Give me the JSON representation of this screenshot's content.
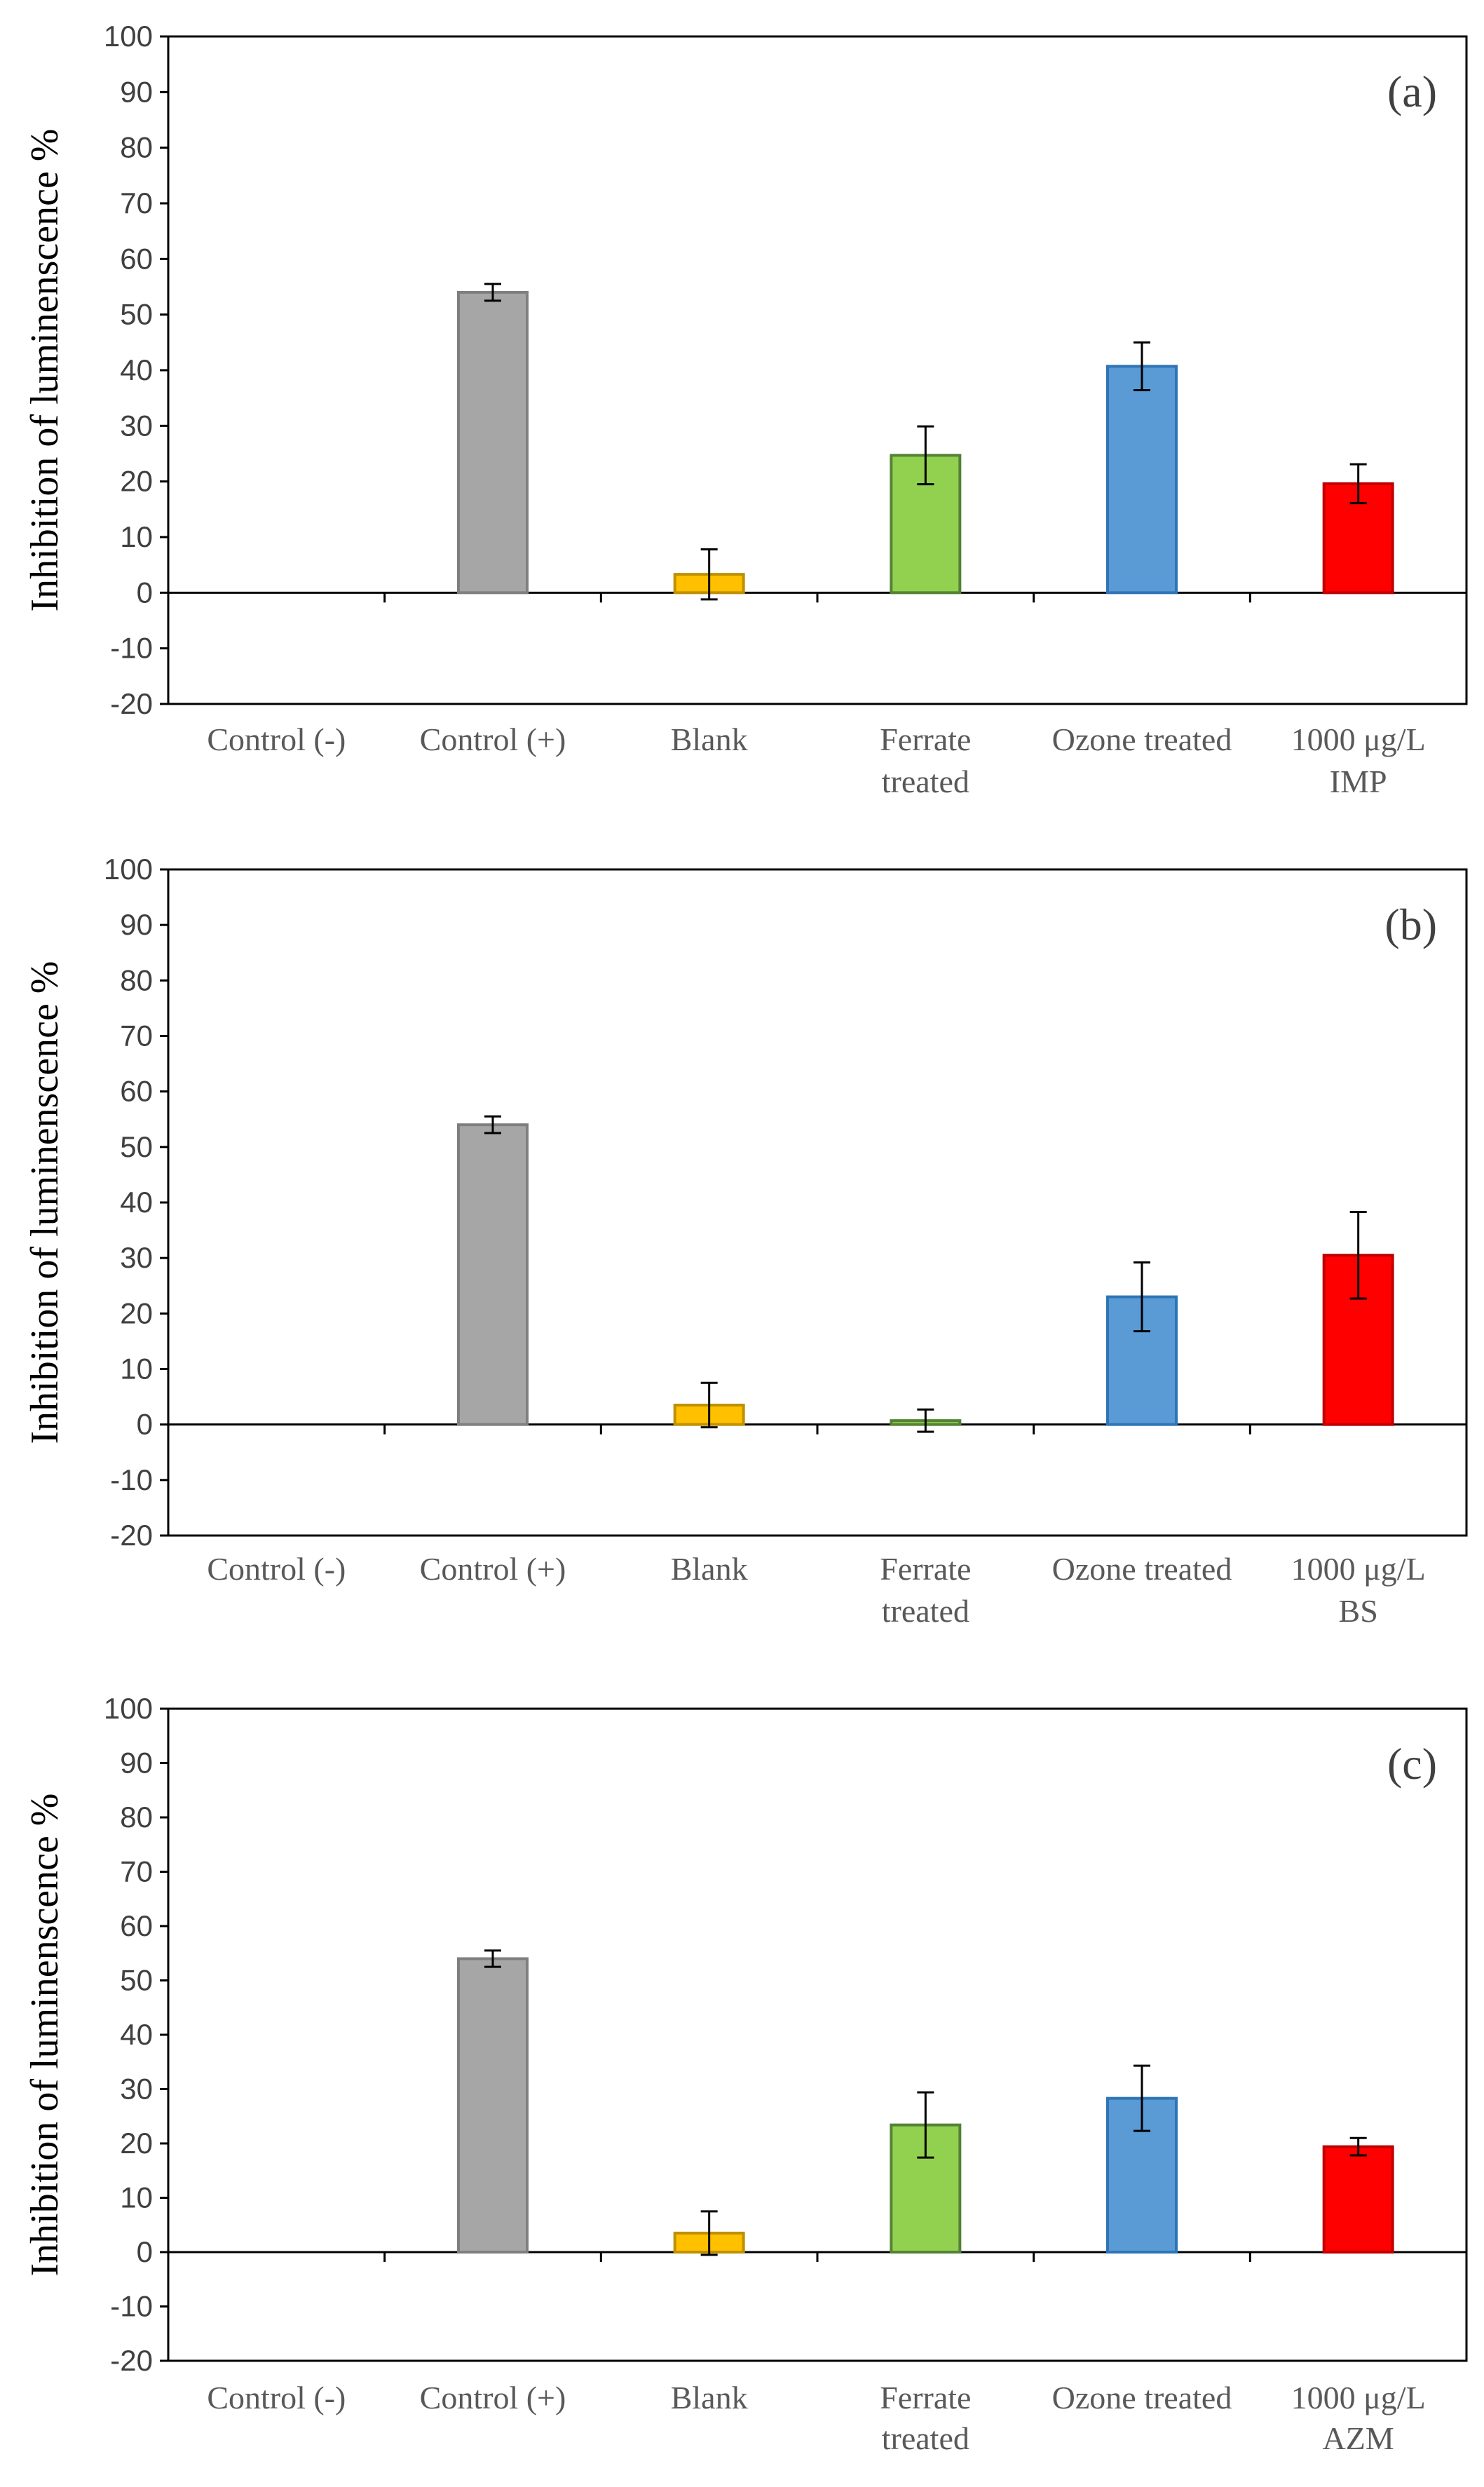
{
  "chart_data": [
    {
      "type": "bar",
      "panel_label": "(a)",
      "ylabel": "Inhibition of luminenscence %",
      "ylim": [
        -20,
        100
      ],
      "yticks": [
        100,
        90,
        80,
        70,
        60,
        50,
        40,
        30,
        20,
        10,
        0,
        -10,
        -20
      ],
      "categories": [
        {
          "lines": [
            "Control (-)"
          ]
        },
        {
          "lines": [
            "Control (+)"
          ]
        },
        {
          "lines": [
            "Blank"
          ]
        },
        {
          "lines": [
            "Ferrate",
            "treated"
          ]
        },
        {
          "lines": [
            "Ozone treated"
          ]
        },
        {
          "lines": [
            "1000 μg/L",
            "IMP"
          ]
        }
      ],
      "values": [
        0,
        54,
        3.3,
        24.7,
        40.7,
        19.6
      ],
      "errors": [
        0,
        1.5,
        4.5,
        5.2,
        4.3,
        3.5
      ],
      "colors": [
        "#ffffff",
        "#a6a6a6",
        "#ffc000",
        "#92d050",
        "#5b9bd5",
        "#ff0000"
      ],
      "edge_colors": [
        "#ffffff",
        "#7f7f7f",
        "#bf9000",
        "#548235",
        "#2e75b6",
        "#c00000"
      ],
      "grid": false,
      "legend": "none"
    },
    {
      "type": "bar",
      "panel_label": "(b)",
      "ylabel": "Inhibition of luminenscence %",
      "ylim": [
        -20,
        100
      ],
      "yticks": [
        100,
        90,
        80,
        70,
        60,
        50,
        40,
        30,
        20,
        10,
        0,
        -10,
        -20
      ],
      "categories": [
        {
          "lines": [
            "Control (-)"
          ]
        },
        {
          "lines": [
            "Control (+)"
          ]
        },
        {
          "lines": [
            "Blank"
          ]
        },
        {
          "lines": [
            "Ferrate",
            "treated"
          ]
        },
        {
          "lines": [
            "Ozone treated"
          ]
        },
        {
          "lines": [
            "1000 μg/L",
            "BS"
          ]
        }
      ],
      "values": [
        0,
        54,
        3.5,
        0.7,
        23,
        30.5
      ],
      "errors": [
        0,
        1.5,
        4.0,
        2.0,
        6.2,
        7.8
      ],
      "colors": [
        "#ffffff",
        "#a6a6a6",
        "#ffc000",
        "#92d050",
        "#5b9bd5",
        "#ff0000"
      ],
      "edge_colors": [
        "#ffffff",
        "#7f7f7f",
        "#bf9000",
        "#548235",
        "#2e75b6",
        "#c00000"
      ],
      "grid": false,
      "legend": "none"
    },
    {
      "type": "bar",
      "panel_label": "(c)",
      "ylabel": "Inhibition of luminenscence %",
      "ylim": [
        -20,
        100
      ],
      "yticks": [
        100,
        90,
        80,
        70,
        60,
        50,
        40,
        30,
        20,
        10,
        0,
        -10,
        -20
      ],
      "categories": [
        {
          "lines": [
            "Control (-)"
          ]
        },
        {
          "lines": [
            "Control (+)"
          ]
        },
        {
          "lines": [
            "Blank"
          ]
        },
        {
          "lines": [
            "Ferrate",
            "treated"
          ]
        },
        {
          "lines": [
            "Ozone treated"
          ]
        },
        {
          "lines": [
            "1000 μg/L",
            "AZM"
          ]
        }
      ],
      "values": [
        0,
        54,
        3.5,
        23.4,
        28.3,
        19.4
      ],
      "errors": [
        0,
        1.5,
        4.0,
        6.0,
        6.0,
        1.6
      ],
      "colors": [
        "#ffffff",
        "#a6a6a6",
        "#ffc000",
        "#92d050",
        "#5b9bd5",
        "#ff0000"
      ],
      "edge_colors": [
        "#ffffff",
        "#7f7f7f",
        "#bf9000",
        "#548235",
        "#2e75b6",
        "#c00000"
      ],
      "grid": false,
      "legend": "none"
    }
  ]
}
